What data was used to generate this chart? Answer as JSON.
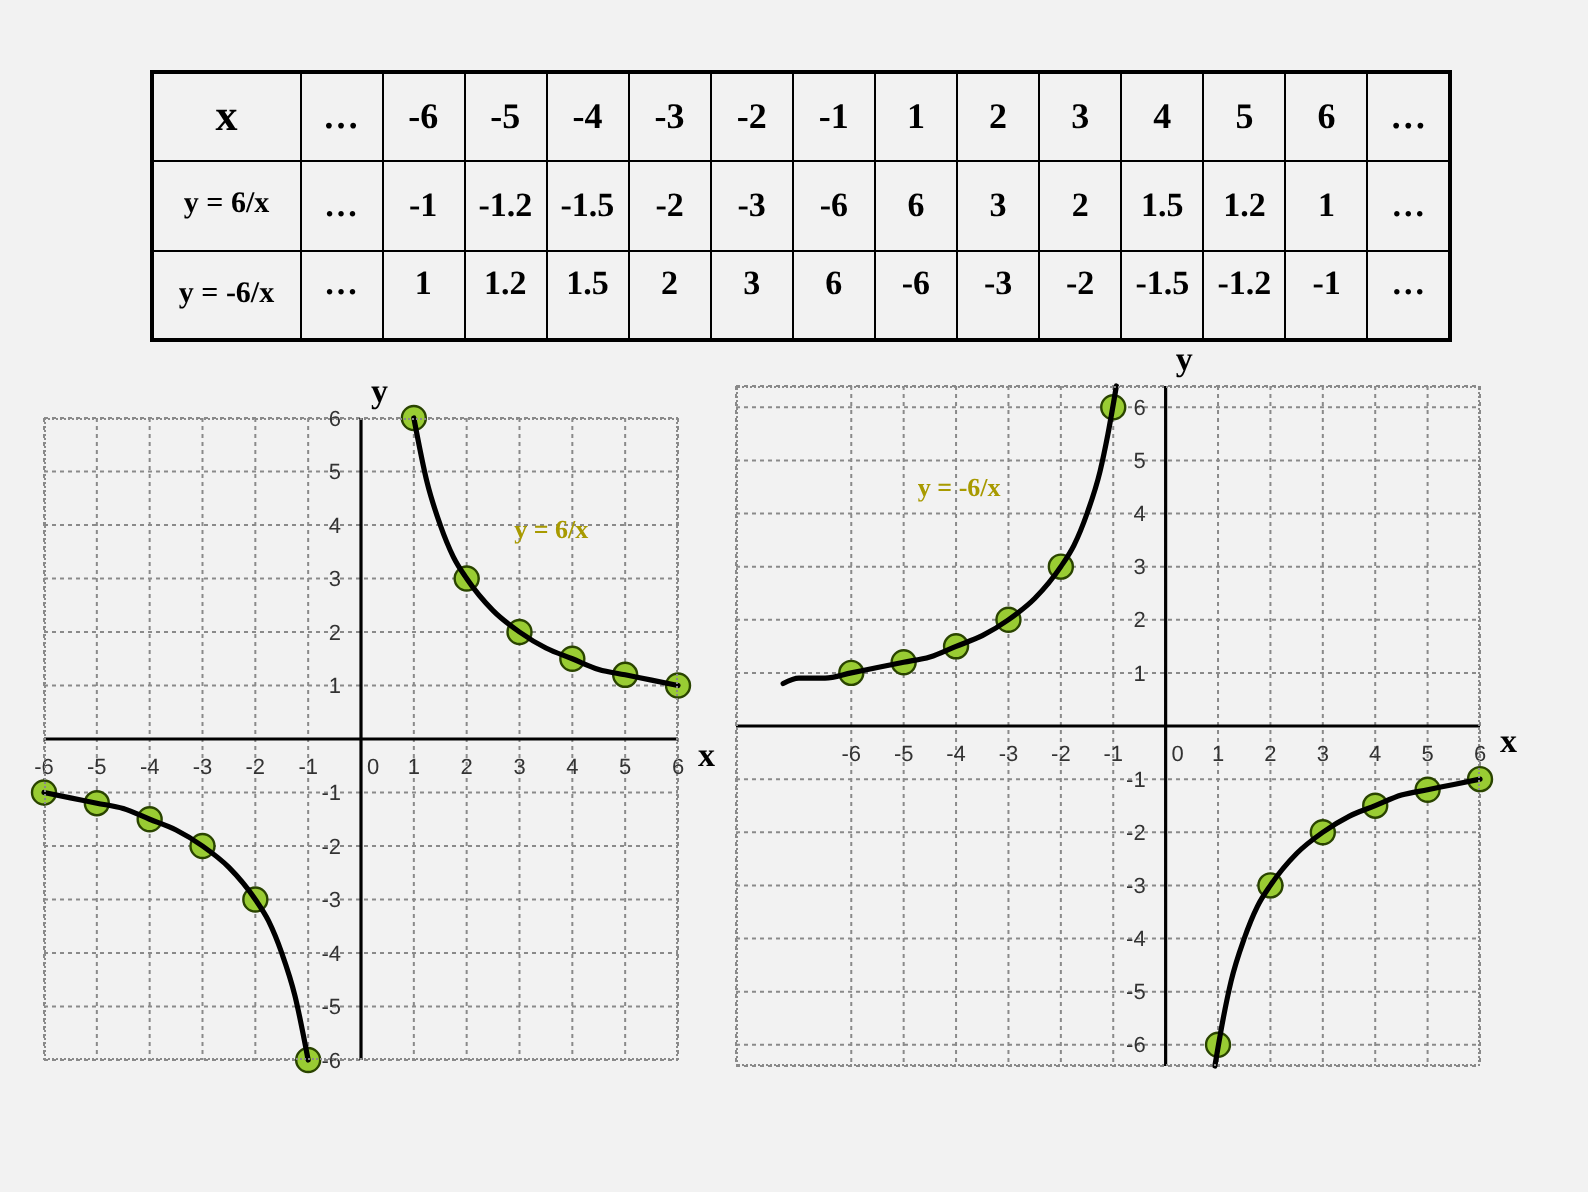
{
  "chart_data": [
    {
      "type": "other",
      "annotations": [
        "x",
        "…",
        "-6",
        "-5",
        "-4",
        "-3",
        "-2",
        "-1",
        "1",
        "2",
        "3",
        "4",
        "5",
        "6",
        "…",
        "y = 6/x",
        "…",
        "-1",
        "-1.2",
        "-1.5",
        "-2",
        "-3",
        "-6",
        "6",
        "3",
        "2",
        "1.5",
        "1.2",
        "1",
        "…",
        "y = -6/x",
        "…",
        "1",
        "1.2",
        "1.5",
        "2",
        "3",
        "6",
        "-6",
        "-3",
        "-2",
        "-1.5",
        "-1.2",
        "-1",
        "…"
      ]
    },
    {
      "type": "scatter",
      "xlabel": "x",
      "ylabel": "y",
      "xlim": [
        -6,
        6
      ],
      "ylim": [
        -6,
        6
      ],
      "xticks": [
        -6,
        -5,
        -4,
        -3,
        -2,
        -1,
        0,
        1,
        2,
        3,
        4,
        5,
        6
      ],
      "yticks": [
        -6,
        -5,
        -4,
        -3,
        -2,
        -1,
        1,
        2,
        3,
        4,
        5,
        6
      ],
      "grid": true,
      "series": [
        {
          "type": "scatter",
          "color": "#99cc33",
          "marker": "circle",
          "x": [
            -6,
            -5,
            -4,
            -3,
            -2,
            -1,
            1,
            2,
            3,
            4,
            5,
            6
          ],
          "values": [
            -1,
            -1.2,
            -1.5,
            -2,
            -3,
            -6,
            6,
            3,
            2,
            1.5,
            1.2,
            1
          ]
        },
        {
          "type": "line",
          "color": "#000000",
          "x": [
            -6,
            -5.5,
            -5,
            -4.5,
            -4,
            -3.5,
            -3,
            -2.5,
            -2,
            -1.75,
            -1.5,
            -1.25,
            -1,
            0,
            1,
            1.25,
            1.5,
            1.75,
            2,
            2.5,
            3,
            3.5,
            4,
            4.5,
            5,
            5.5,
            6
          ],
          "values": [
            -1,
            -1.1,
            -1.2,
            -1.3,
            -1.5,
            -1.7,
            -2,
            -2.4,
            -3,
            -3.4,
            -4,
            -4.8,
            -6,
            null,
            6,
            4.8,
            4,
            3.4,
            3,
            2.4,
            2,
            1.7,
            1.5,
            1.3,
            1.2,
            1.1,
            1
          ]
        }
      ],
      "annotations": [
        "y = 6/x"
      ]
    },
    {
      "type": "scatter",
      "xlabel": "x",
      "ylabel": "y",
      "xlim": [
        -8.2,
        6
      ],
      "ylim": [
        -6.4,
        6.4
      ],
      "xticks": [
        -6,
        -5,
        -4,
        -3,
        -2,
        -1,
        0,
        1,
        2,
        3,
        4,
        5,
        6
      ],
      "yticks": [
        -6,
        -5,
        -4,
        -3,
        -2,
        -1,
        1,
        2,
        3,
        4,
        5,
        6
      ],
      "grid": true,
      "series": [
        {
          "type": "scatter",
          "color": "#99cc33",
          "marker": "circle",
          "x": [
            -6,
            -5,
            -4,
            -3,
            -2,
            -1,
            1,
            2,
            3,
            4,
            5,
            6
          ],
          "values": [
            1,
            1.2,
            1.5,
            2,
            3,
            6,
            -6,
            -3,
            -2,
            -1.5,
            -1.2,
            -1
          ]
        },
        {
          "type": "line",
          "color": "#000000",
          "x": [
            -7.3,
            -7,
            -6.5,
            -6,
            -5.5,
            -5,
            -4.5,
            -4,
            -3.5,
            -3,
            -2.5,
            -2,
            -1.75,
            -1.5,
            -1.25,
            -1.1,
            -0.94,
            0,
            0.94,
            1.1,
            1.25,
            1.5,
            1.75,
            2,
            2.5,
            3,
            3.5,
            4,
            4.5,
            5,
            5.5,
            6
          ],
          "values": [
            0.8,
            0.9,
            0.9,
            1,
            1.1,
            1.2,
            1.3,
            1.5,
            1.7,
            2,
            2.4,
            3,
            3.4,
            4,
            4.8,
            5.5,
            6.4,
            null,
            -6.4,
            -5.5,
            -4.8,
            -4,
            -3.4,
            -3,
            -2.4,
            -2,
            -1.7,
            -1.5,
            -1.3,
            -1.2,
            -1.1,
            -1
          ]
        }
      ],
      "annotations": [
        "y = -6/x"
      ]
    }
  ]
}
